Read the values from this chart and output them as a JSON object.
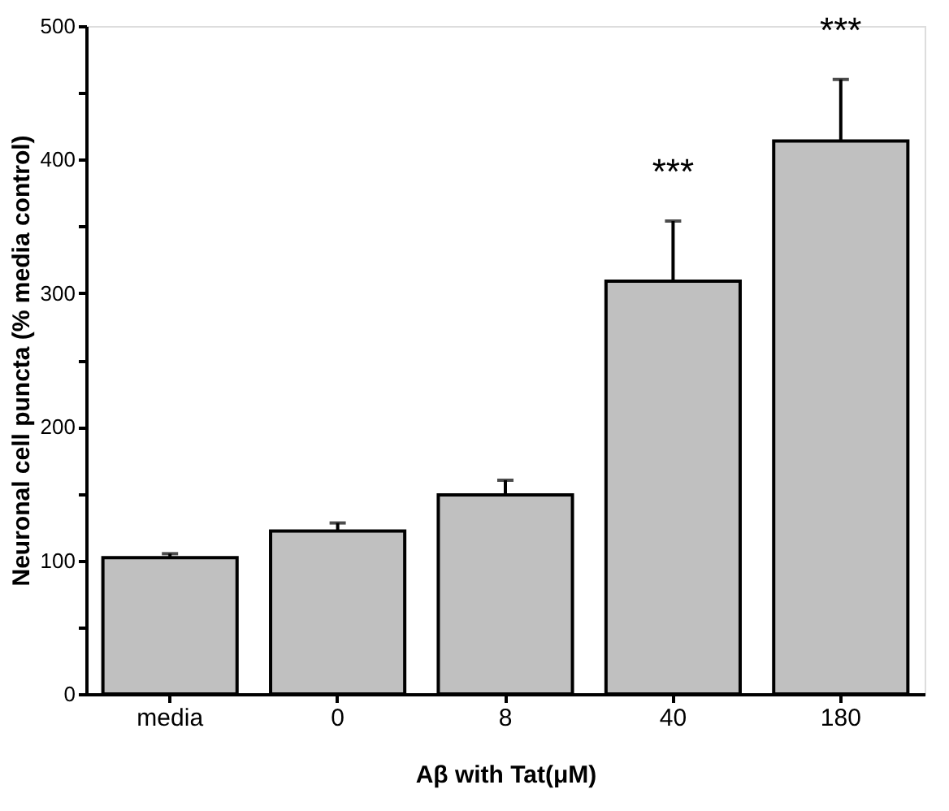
{
  "chart_data": {
    "type": "bar",
    "categories": [
      "media",
      "0",
      "8",
      "40",
      "180"
    ],
    "values": [
      102,
      122,
      149,
      309,
      414
    ],
    "errors": [
      [
        102,
        105
      ],
      [
        122,
        128
      ],
      [
        149,
        160
      ],
      [
        309,
        354
      ],
      [
        414,
        460
      ]
    ],
    "color": "#c0c0c0",
    "xlabel": "Aβ with Tat(μM)",
    "ylabel": "Neuronal cell puncta (% media control)",
    "ylim": [
      0,
      500
    ],
    "yticks": [
      0,
      {
        "value": 50,
        "label": null
      },
      100,
      {
        "value": 150,
        "label": null
      },
      200,
      {
        "value": 250,
        "label": null
      },
      300,
      {
        "value": 350,
        "label": null
      },
      400,
      {
        "value": 450,
        "label": null
      },
      500
    ],
    "annotations": [
      {
        "text": "***",
        "x": "40",
        "y": 354
      },
      {
        "text": "***",
        "x": "180",
        "y": 460
      }
    ],
    "grid": false
  }
}
